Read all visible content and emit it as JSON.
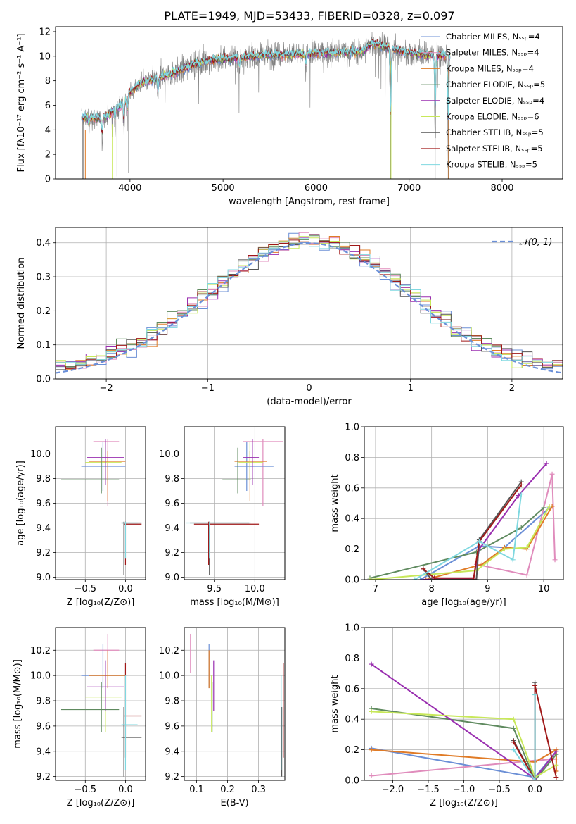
{
  "figure": {
    "title": "PLATE=1949, MJD=53433, FIBERID=0328, z=0.097"
  },
  "colors": {
    "chabrier_miles": "#6b8fd6",
    "salpeter_miles": "#e08cbc",
    "kroupa_miles": "#e07b26",
    "chabrier_elodie": "#5f8a5f",
    "salpeter_elodie": "#9a2fb0",
    "kroupa_elodie": "#c8e85a",
    "chabrier_stelib": "#555555",
    "salpeter_stelib": "#a01818",
    "kroupa_stelib": "#7fd8e0",
    "observed_spectrum": "#808080",
    "normal_curve": "#6a8fd8",
    "grid": "#b0b0b0"
  },
  "chart_data": [
    {
      "id": "spectrum",
      "type": "line",
      "xlabel": "wavelength [Angstrom, rest frame]",
      "ylabel": "Flux [fλ10⁻¹⁷ erg cm⁻² s⁻¹ A⁻¹]",
      "xlim": [
        3200,
        8650
      ],
      "ylim": [
        0,
        12.4
      ],
      "xticks": [
        4000,
        5000,
        6000,
        7000,
        8000
      ],
      "yticks": [
        0,
        2,
        4,
        6,
        8,
        10,
        12
      ],
      "grid": false,
      "legend_position": "right",
      "spectrum_range": [
        3480,
        7440
      ],
      "continuum": [
        [
          3480,
          5.0
        ],
        [
          3600,
          5.0
        ],
        [
          3700,
          4.9
        ],
        [
          3800,
          5.4
        ],
        [
          3900,
          6.0
        ],
        [
          4000,
          7.0
        ],
        [
          4100,
          7.8
        ],
        [
          4300,
          8.2
        ],
        [
          4500,
          8.7
        ],
        [
          4700,
          9.4
        ],
        [
          5000,
          9.8
        ],
        [
          5500,
          10.1
        ],
        [
          6000,
          10.2
        ],
        [
          6500,
          10.4
        ],
        [
          6600,
          11.1
        ],
        [
          6800,
          10.6
        ],
        [
          7000,
          10.3
        ],
        [
          7200,
          10.1
        ],
        [
          7440,
          10.0
        ]
      ],
      "dips": [
        [
          3560,
          1.0
        ],
        [
          3700,
          2.2
        ],
        [
          3840,
          1.5
        ],
        [
          3935,
          3.0
        ],
        [
          3970,
          2.0
        ],
        [
          4300,
          1.8
        ],
        [
          5175,
          1.2
        ],
        [
          5890,
          1.3
        ],
        [
          6800,
          10.0
        ],
        [
          7280,
          8.0
        ],
        [
          7420,
          9.5
        ]
      ],
      "legend": [
        "Chabrier MILES, Nₛₛₚ=4",
        "Salpeter MILES, Nₛₛₚ=4",
        "Kroupa MILES, Nₛₛₚ=4",
        "Chabrier ELODIE, Nₛₛₚ=5",
        "Salpeter ELODIE, Nₛₛₚ=4",
        "Kroupa ELODIE, Nₛₛₚ=6",
        "Chabrier STELIB, Nₛₛₚ=5",
        "Salpeter STELIB, Nₛₛₚ=5",
        "Kroupa STELIB, Nₛₛₚ=5"
      ]
    },
    {
      "id": "residuals",
      "type": "histogram",
      "xlabel": "(data-model)/error",
      "ylabel": "Normed distribution",
      "xlim": [
        -2.5,
        2.5
      ],
      "ylim": [
        0,
        0.445
      ],
      "xticks": [
        -2,
        -1,
        0,
        1,
        2
      ],
      "yticks": [
        0.0,
        0.1,
        0.2,
        0.3,
        0.4
      ],
      "grid": true,
      "legend_position": "top-right",
      "legend": "𝒩(0, 1)",
      "bin_width": 0.1,
      "bin_start": -2.5
    },
    {
      "id": "z_vs_age",
      "type": "scatter",
      "xlabel": "Z [log₁₀(Z/Z⊙)]",
      "ylabel": "age  [log₁₀(age/yr)]",
      "xlim": [
        -0.87,
        0.25
      ],
      "ylim": [
        8.98,
        10.22
      ],
      "xticks": [
        -0.5,
        0.0
      ],
      "yticks": [
        9.0,
        9.2,
        9.4,
        9.6,
        9.8,
        10.0
      ],
      "grid": true
    },
    {
      "id": "mass_vs_age",
      "type": "scatter",
      "xlabel": "mass [log₁₀(M/M⊙)]",
      "ylabel": "",
      "xlim": [
        9.13,
        10.37
      ],
      "ylim": [
        8.98,
        10.22
      ],
      "xticks": [
        9.5,
        10.0
      ],
      "yticks": [
        9.0,
        9.2,
        9.4,
        9.6,
        9.8,
        10.0
      ],
      "grid": true
    },
    {
      "id": "age_vs_weight",
      "type": "line",
      "xlabel": "age  [log₁₀(age/yr)]",
      "ylabel": "mass weight",
      "xlim": [
        6.8,
        10.35
      ],
      "ylim": [
        0,
        1
      ],
      "xticks": [
        7,
        8,
        9,
        10
      ],
      "yticks": [
        0.0,
        0.2,
        0.4,
        0.6,
        0.8,
        1.0
      ],
      "grid": true,
      "series": [
        {
          "key": "chabrier_miles",
          "points": [
            [
              7.8,
              0.0
            ],
            [
              8.85,
              0.22
            ],
            [
              9.3,
              0.21
            ],
            [
              10.1,
              0.47
            ]
          ]
        },
        {
          "key": "salpeter_miles",
          "points": [
            [
              8.8,
              0.1
            ],
            [
              9.7,
              0.03
            ],
            [
              10.15,
              0.69
            ],
            [
              10.2,
              0.13
            ]
          ]
        },
        {
          "key": "kroupa_miles",
          "points": [
            [
              7.9,
              0.0
            ],
            [
              8.9,
              0.1
            ],
            [
              9.3,
              0.21
            ],
            [
              9.7,
              0.2
            ],
            [
              10.15,
              0.48
            ]
          ]
        },
        {
          "key": "chabrier_elodie",
          "points": [
            [
              6.9,
              0.01
            ],
            [
              8.8,
              0.18
            ],
            [
              9.6,
              0.34
            ],
            [
              10.0,
              0.47
            ]
          ]
        },
        {
          "key": "salpeter_elodie",
          "points": [
            [
              7.85,
              0.0
            ],
            [
              8.75,
              0.01
            ],
            [
              8.85,
              0.2
            ],
            [
              9.55,
              0.55
            ],
            [
              10.05,
              0.76
            ]
          ]
        },
        {
          "key": "kroupa_elodie",
          "points": [
            [
              6.9,
              0.0
            ],
            [
              8.8,
              0.06
            ],
            [
              9.3,
              0.2
            ],
            [
              9.7,
              0.21
            ],
            [
              10.1,
              0.48
            ]
          ]
        },
        {
          "key": "chabrier_stelib",
          "points": [
            [
              7.85,
              0.07
            ],
            [
              8.0,
              0.0
            ],
            [
              8.8,
              0.0
            ],
            [
              8.85,
              0.26
            ],
            [
              9.6,
              0.64
            ]
          ]
        },
        {
          "key": "salpeter_stelib",
          "points": [
            [
              7.85,
              0.07
            ],
            [
              8.05,
              0.01
            ],
            [
              8.75,
              0.01
            ],
            [
              8.85,
              0.25
            ],
            [
              9.6,
              0.62
            ]
          ]
        },
        {
          "key": "kroupa_stelib",
          "points": [
            [
              7.7,
              0.0
            ],
            [
              8.85,
              0.25
            ],
            [
              9.45,
              0.13
            ],
            [
              9.6,
              0.56
            ]
          ]
        }
      ]
    },
    {
      "id": "z_vs_mass",
      "type": "scatter",
      "xlabel": "Z [log₁₀(Z/Z⊙)]",
      "ylabel": "mass [log₁₀(M/M⊙)]",
      "xlim": [
        -0.87,
        0.25
      ],
      "ylim": [
        9.17,
        10.38
      ],
      "xticks": [
        -0.5,
        0.0
      ],
      "yticks": [
        9.2,
        9.4,
        9.6,
        9.8,
        10.0,
        10.2
      ],
      "grid": true
    },
    {
      "id": "ebv_vs_mass",
      "type": "scatter",
      "xlabel": "E(B-V)",
      "ylabel": "",
      "xlim": [
        0.06,
        0.385
      ],
      "ylim": [
        9.17,
        10.38
      ],
      "xticks": [
        0.1,
        0.2,
        0.3
      ],
      "yticks": [
        9.2,
        9.4,
        9.6,
        9.8,
        10.0,
        10.2
      ],
      "grid": true
    },
    {
      "id": "z_vs_weight",
      "type": "line",
      "xlabel": "Z [log₁₀(Z/Z⊙)]",
      "ylabel": "mass weight",
      "xlim": [
        -2.4,
        0.4
      ],
      "ylim": [
        0,
        1
      ],
      "xticks": [
        -2.0,
        -1.5,
        -1.0,
        -0.5,
        0.0
      ],
      "yticks": [
        0.0,
        0.2,
        0.4,
        0.6,
        0.8,
        1.0
      ],
      "grid": true,
      "series": [
        {
          "key": "chabrier_miles",
          "points": [
            [
              -2.3,
              0.21
            ],
            [
              0.0,
              0.02
            ],
            [
              0.3,
              0.19
            ]
          ]
        },
        {
          "key": "salpeter_miles",
          "points": [
            [
              -2.3,
              0.03
            ],
            [
              0.0,
              0.13
            ],
            [
              0.3,
              0.14
            ],
            [
              0.3,
              0.06
            ]
          ]
        },
        {
          "key": "kroupa_miles",
          "points": [
            [
              -2.3,
              0.2
            ],
            [
              0.0,
              0.12
            ],
            [
              0.3,
              0.2
            ],
            [
              0.3,
              0.06
            ]
          ]
        },
        {
          "key": "chabrier_elodie",
          "points": [
            [
              -2.3,
              0.47
            ],
            [
              -0.3,
              0.34
            ],
            [
              0.0,
              0.0
            ],
            [
              0.3,
              0.17
            ]
          ]
        },
        {
          "key": "salpeter_elodie",
          "points": [
            [
              -2.3,
              0.76
            ],
            [
              0.0,
              0.01
            ],
            [
              0.3,
              0.19
            ]
          ]
        },
        {
          "key": "kroupa_elodie",
          "points": [
            [
              -2.3,
              0.45
            ],
            [
              -0.3,
              0.4
            ],
            [
              0.0,
              0.02
            ],
            [
              0.3,
              0.1
            ]
          ]
        },
        {
          "key": "chabrier_stelib",
          "points": [
            [
              -0.3,
              0.26
            ],
            [
              0.0,
              0.0
            ],
            [
              0.0,
              0.64
            ]
          ]
        },
        {
          "key": "salpeter_stelib",
          "points": [
            [
              -0.3,
              0.25
            ],
            [
              0.0,
              0.0
            ],
            [
              0.0,
              0.62
            ],
            [
              0.3,
              0.02
            ]
          ]
        },
        {
          "key": "kroupa_stelib",
          "points": [
            [
              -0.3,
              0.2
            ],
            [
              0.0,
              0.0
            ],
            [
              0.0,
              0.56
            ]
          ]
        }
      ]
    }
  ],
  "crosses": [
    {
      "key": "salpeter_miles",
      "z": [
        -0.4,
        -0.08
      ],
      "zc": -0.22,
      "age": [
        9.58,
        10.12
      ],
      "agec": 10.1,
      "mass": [
        9.85,
        10.35
      ],
      "massc": 10.1,
      "mass_v": [
        10.02,
        10.33
      ],
      "massv_c": 10.2,
      "ebv": 0.08
    },
    {
      "key": "chabrier_miles",
      "z": [
        -0.55,
        0.0
      ],
      "zc": -0.28,
      "age": [
        9.7,
        10.1
      ],
      "agec": 9.9,
      "mass": [
        9.75,
        10.23
      ],
      "massc": 9.9,
      "mass_v": [
        9.9,
        10.25
      ],
      "massv_c": 10.0,
      "ebv": 0.14
    },
    {
      "key": "kroupa_miles",
      "z": [
        -0.45,
        0.0
      ],
      "zc": -0.22,
      "age": [
        9.62,
        10.02
      ],
      "agec": 9.94,
      "mass": [
        9.75,
        10.15
      ],
      "massc": 9.94,
      "mass_v": [
        9.9,
        10.2
      ],
      "massv_c": 10.0,
      "ebv": 0.14
    },
    {
      "key": "kroupa_elodie",
      "z": [
        -0.5,
        -0.05
      ],
      "zc": -0.25,
      "age": [
        9.8,
        10.1
      ],
      "agec": 9.93,
      "mass": [
        9.8,
        10.1
      ],
      "massc": 9.94,
      "mass_v": [
        9.55,
        10.0
      ],
      "massv_c": 9.83,
      "ebv": 0.148
    },
    {
      "key": "salpeter_elodie",
      "z": [
        -0.48,
        -0.02
      ],
      "zc": -0.25,
      "age": [
        9.75,
        10.12
      ],
      "agec": 9.97,
      "mass": [
        9.85,
        10.05
      ],
      "massc": 9.97,
      "mass_v": [
        9.72,
        10.12
      ],
      "massv_c": 9.91,
      "ebv": 0.155
    },
    {
      "key": "chabrier_elodie",
      "z": [
        -0.8,
        -0.08
      ],
      "zc": -0.3,
      "age": [
        9.68,
        10.05
      ],
      "agec": 9.79,
      "mass": [
        9.6,
        9.95
      ],
      "massc": 9.79,
      "mass_v": [
        9.55,
        9.95
      ],
      "massv_c": 9.73,
      "ebv": 0.15
    },
    {
      "key": "chabrier_stelib",
      "z": [
        -0.05,
        0.2
      ],
      "zc": -0.02,
      "age": [
        9.02,
        9.45
      ],
      "agec": 9.44,
      "mass": [
        9.2,
        9.93
      ],
      "massc": 9.44,
      "mass_v": [
        9.2,
        9.75
      ],
      "massv_c": 9.51,
      "ebv": 0.375
    },
    {
      "key": "salpeter_stelib",
      "z": [
        -0.02,
        0.2
      ],
      "zc": 0.0,
      "age": [
        9.1,
        9.45
      ],
      "agec": 9.43,
      "mass": [
        9.25,
        10.05
      ],
      "massc": 9.43,
      "mass_v": [
        9.35,
        10.1
      ],
      "massv_c": 9.68,
      "ebv": 0.38
    },
    {
      "key": "kroupa_stelib",
      "z": [
        -0.05,
        0.15
      ],
      "zc": 0.0,
      "age": [
        9.15,
        9.45
      ],
      "agec": 9.44,
      "mass": [
        9.15,
        9.95
      ],
      "massc": 9.44,
      "mass_v": [
        9.25,
        10.0
      ],
      "massv_c": 9.61,
      "ebv": 0.373
    }
  ]
}
